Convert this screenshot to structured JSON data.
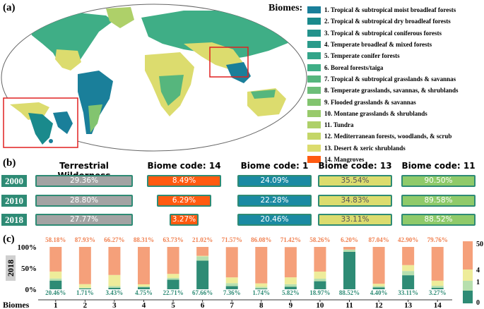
{
  "panel_labels": {
    "a": "(a)",
    "b": "(b)",
    "c": "(c)"
  },
  "legend_title": "Biomes:",
  "legend": [
    {
      "label": "1. Tropical & subtropical moist broadleaf forests",
      "color": "#1a7f9a"
    },
    {
      "label": "2. Tropical & subtropical dry broadleaf forests",
      "color": "#1a8a8c"
    },
    {
      "label": "3. Tropical & subtropical coniferous forests",
      "color": "#24928c"
    },
    {
      "label": "4. Temperate broadleaf & mixed forests",
      "color": "#2a9a8a"
    },
    {
      "label": "5. Temperate conifer forests",
      "color": "#33a489"
    },
    {
      "label": "6. Boreal forests/taiga",
      "color": "#3fae86"
    },
    {
      "label": "7. Tropical & subtropical grasslands & savannas",
      "color": "#56b67d"
    },
    {
      "label": "8. Temperate grasslands, savannas, & shrublands",
      "color": "#6cbe78"
    },
    {
      "label": "9. Flooded grasslands & savannas",
      "color": "#82c46f"
    },
    {
      "label": "10. Montane grasslands & shrublands",
      "color": "#98ca6b"
    },
    {
      "label": "11. Tundra",
      "color": "#aed069"
    },
    {
      "label": "12. Mediterranean forests, woodlands, & scrub",
      "color": "#c4d668"
    },
    {
      "label": "13. Desert & xeric shrublands",
      "color": "#dcdc6e"
    },
    {
      "label": "14. Mangroves",
      "color": "#ff5a10"
    }
  ],
  "wilderness_headers": [
    "Terrestrial Wilderness",
    "Biome code: 14",
    "Biome code: 1",
    "Biome code: 13",
    "Biome code: 11"
  ],
  "wilderness_colors": [
    "#a3a3a3",
    "#ff5a10",
    "#1a8aa3",
    "#dcdc6e",
    "#8fca6a"
  ],
  "wilderness_rows": [
    {
      "year": "2000",
      "values": [
        29.36,
        8.49,
        24.09,
        35.54,
        90.5
      ],
      "labels": [
        "29.36%",
        "8.49%",
        "24.09%",
        "35.54%",
        "90.50%"
      ]
    },
    {
      "year": "2010",
      "values": [
        28.8,
        6.29,
        22.28,
        34.83,
        89.58
      ],
      "labels": [
        "28.80%",
        "6.29%",
        "22.28%",
        "34.83%",
        "89.58%"
      ]
    },
    {
      "year": "2018",
      "values": [
        27.77,
        3.27,
        20.46,
        33.11,
        88.52
      ],
      "labels": [
        "27.77%",
        "3.27%",
        "20.46%",
        "33.11%",
        "88.52%"
      ]
    }
  ],
  "chart_data": {
    "type": "bar",
    "stacked": true,
    "year_label": "2018",
    "xlabel": "Biomes",
    "categories": [
      "1",
      "2",
      "3",
      "4",
      "5",
      "6",
      "7",
      "8",
      "9",
      "10",
      "11",
      "12",
      "13",
      "14"
    ],
    "yticks": [
      "0%",
      "50%",
      "100%"
    ],
    "ylim": [
      0,
      100
    ],
    "grid": false,
    "series": [
      {
        "values": [
          20.46,
          1.71,
          3.43,
          4.75,
          22.71,
          67.66,
          7.36,
          1.74,
          5.82,
          18.97,
          88.52,
          4.4,
          33.11,
          3.27
        ],
        "color": "#2e8b75"
      },
      {
        "values": [
          5,
          2,
          4,
          2,
          4,
          10,
          7,
          4,
          6,
          6,
          5,
          3,
          10,
          5
        ],
        "color": "#b7dfae"
      },
      {
        "values": [
          16.36,
          8.36,
          26.3,
          4.94,
          9.56,
          1.32,
          13.67,
          8.18,
          16.36,
          16.77,
          0.28,
          5.56,
          13.99,
          11.97
        ],
        "color": "#eeec9a"
      },
      {
        "values": [
          58.18,
          87.93,
          66.27,
          88.31,
          63.73,
          21.02,
          71.57,
          86.08,
          71.42,
          58.26,
          6.2,
          87.04,
          42.9,
          79.76
        ],
        "color": "#f5a07a"
      }
    ],
    "top_labels": [
      "58.18%",
      "87.93%",
      "66.27%",
      "88.31%",
      "63.73%",
      "21.02%",
      "71.57%",
      "86.08%",
      "71.42%",
      "58.26%",
      "6.20%",
      "87.04%",
      "42.90%",
      "79.76%"
    ],
    "bottom_labels": [
      "20.46%",
      "1.71%",
      "3.43%",
      "4.75%",
      "22.71%",
      "67.66%",
      "7.36%",
      "1.74%",
      "5.82%",
      "18.97%",
      "88.52%",
      "4.40%",
      "33.11%",
      "3.27%"
    ],
    "side_legend": {
      "labels": [
        "50",
        "4",
        "1",
        "0"
      ],
      "colors": [
        "#f5a07a",
        "#eeec9a",
        "#b7dfae",
        "#2e8b75"
      ]
    }
  }
}
